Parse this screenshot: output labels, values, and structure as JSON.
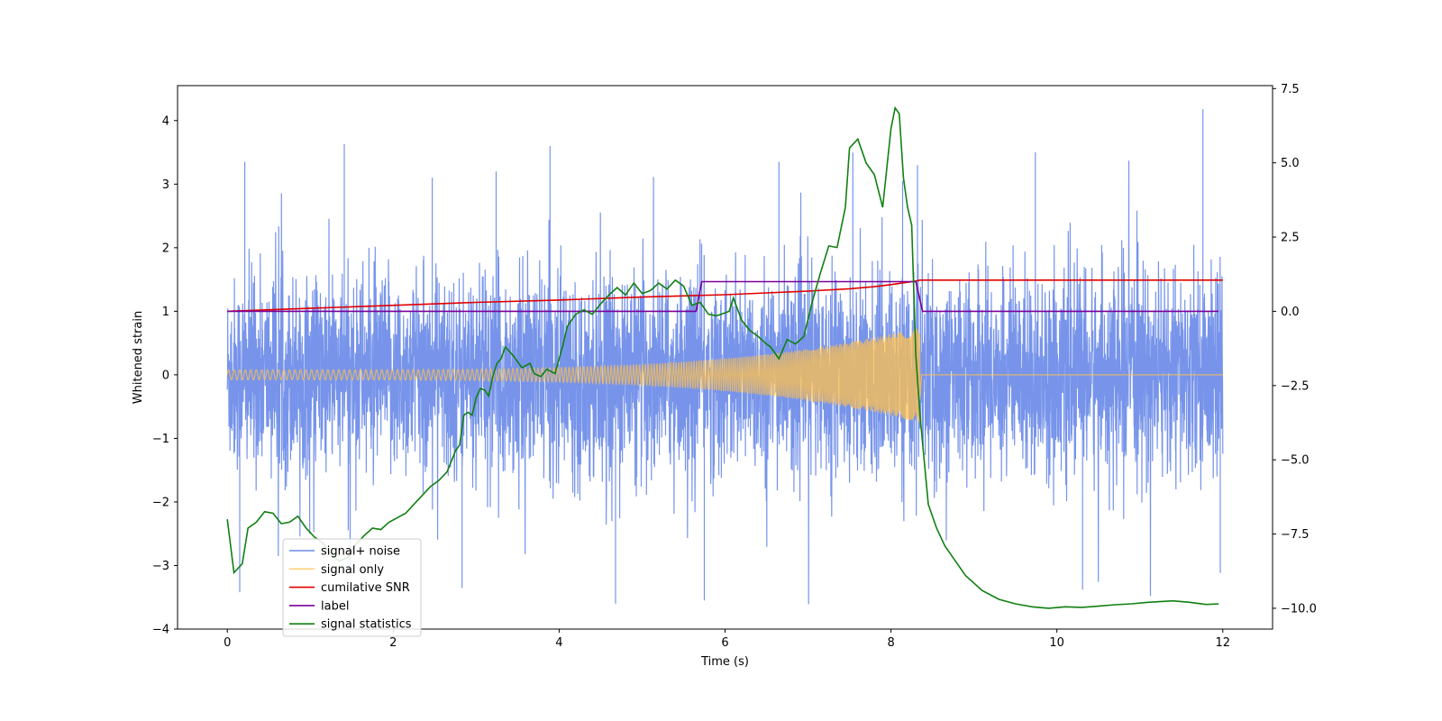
{
  "chart_data": {
    "type": "line",
    "xlabel": "Time (s)",
    "ylabel": "Whitened strain",
    "xlim": [
      -0.6,
      12.6
    ],
    "ylim": [
      -4.0,
      4.55
    ],
    "y2lim": [
      -10.7,
      7.6
    ],
    "xticks": [
      0,
      2,
      4,
      6,
      8,
      10,
      12
    ],
    "yticks": [
      -4,
      -3,
      -2,
      -1,
      0,
      1,
      2,
      3,
      4
    ],
    "y2ticks": [
      -10.0,
      -7.5,
      -5.0,
      -2.5,
      0.0,
      2.5,
      5.0,
      7.5
    ],
    "y2tick_labels": [
      "−10.0",
      "−7.5",
      "−5.0",
      "−2.5",
      "0.0",
      "2.5",
      "5.0",
      "7.5"
    ],
    "legend_position": "lower-left",
    "grid": false,
    "series": [
      {
        "name": "signal+ noise",
        "axis": "left",
        "color": "#6b8be8",
        "description_envelope": {
          "x_range": [
            0,
            12
          ],
          "typical_band": [
            -1.3,
            1.3
          ],
          "peak_max": 4.18,
          "peak_min": -3.6
        },
        "peaks": [
          {
            "x": 0.21,
            "y": 3.35
          },
          {
            "x": 0.15,
            "y": -3.42
          },
          {
            "x": 1.41,
            "y": 3.63
          },
          {
            "x": 2.47,
            "y": 3.1
          },
          {
            "x": 3.24,
            "y": 3.2
          },
          {
            "x": 3.89,
            "y": 3.6
          },
          {
            "x": 4.68,
            "y": -3.6
          },
          {
            "x": 5.75,
            "y": -3.55
          },
          {
            "x": 2.83,
            "y": -3.35
          },
          {
            "x": 6.65,
            "y": 3.35
          },
          {
            "x": 7.54,
            "y": 3.5
          },
          {
            "x": 8.14,
            "y": 3.05
          },
          {
            "x": 9.74,
            "y": 3.5
          },
          {
            "x": 10.31,
            "y": -3.38
          },
          {
            "x": 11.76,
            "y": 4.18
          },
          {
            "x": 11.97,
            "y": -3.12
          },
          {
            "x": 8.32,
            "y": 3.3
          }
        ]
      },
      {
        "name": "signal only",
        "axis": "left",
        "color": "#ffc04d",
        "chirp": {
          "t_start": 0,
          "t_merge": 8.35,
          "amp_start": 0.08,
          "amp_merge": 0.75,
          "t_end": 12
        }
      },
      {
        "name": "cumilative SNR",
        "axis": "right",
        "color": "#e00000",
        "x": [
          0,
          1,
          2,
          3,
          4,
          5,
          6,
          6.5,
          7,
          7.5,
          7.8,
          8.0,
          8.15,
          8.3,
          8.35,
          12
        ],
        "y": [
          0.0,
          0.1,
          0.2,
          0.3,
          0.38,
          0.48,
          0.56,
          0.62,
          0.68,
          0.76,
          0.83,
          0.9,
          0.96,
          1.02,
          1.05,
          1.05
        ]
      },
      {
        "name": "label",
        "axis": "right",
        "color": "#7a0099",
        "x": [
          0,
          5.65,
          5.72,
          8.3,
          8.38,
          11.95
        ],
        "y": [
          0.0,
          0.0,
          1.0,
          1.0,
          0.0,
          0.0
        ]
      },
      {
        "name": "signal statistics",
        "axis": "right",
        "color": "#118011",
        "x": [
          0,
          0.08,
          0.18,
          0.25,
          0.35,
          0.45,
          0.55,
          0.65,
          0.75,
          0.85,
          0.95,
          1.05,
          1.15,
          1.25,
          1.35,
          1.45,
          1.55,
          1.65,
          1.75,
          1.85,
          1.95,
          2.05,
          2.15,
          2.25,
          2.35,
          2.45,
          2.55,
          2.65,
          2.75,
          2.8,
          2.85,
          2.9,
          2.95,
          3.0,
          3.05,
          3.1,
          3.15,
          3.2,
          3.25,
          3.3,
          3.35,
          3.45,
          3.55,
          3.65,
          3.7,
          3.78,
          3.85,
          3.95,
          4.05,
          4.1,
          4.2,
          4.3,
          4.4,
          4.5,
          4.6,
          4.7,
          4.8,
          4.9,
          5.0,
          5.1,
          5.2,
          5.3,
          5.4,
          5.5,
          5.6,
          5.7,
          5.8,
          5.9,
          6.0,
          6.05,
          6.1,
          6.2,
          6.3,
          6.4,
          6.5,
          6.55,
          6.65,
          6.75,
          6.85,
          6.95,
          7.05,
          7.15,
          7.25,
          7.35,
          7.45,
          7.5,
          7.6,
          7.7,
          7.8,
          7.9,
          8.0,
          8.05,
          8.1,
          8.15,
          8.2,
          8.25,
          8.3,
          8.35,
          8.45,
          8.55,
          8.65,
          8.75,
          8.9,
          9.1,
          9.3,
          9.5,
          9.7,
          9.9,
          10.1,
          10.3,
          10.5,
          10.7,
          10.9,
          11.1,
          11.4,
          11.6,
          11.8,
          11.95
        ],
        "y": [
          -7.0,
          -8.8,
          -8.5,
          -7.3,
          -7.1,
          -6.75,
          -6.8,
          -7.15,
          -7.1,
          -6.9,
          -7.3,
          -7.6,
          -7.8,
          -8.2,
          -8.4,
          -8.3,
          -7.85,
          -7.55,
          -7.3,
          -7.35,
          -7.1,
          -6.95,
          -6.8,
          -6.5,
          -6.2,
          -5.9,
          -5.7,
          -5.4,
          -4.7,
          -4.5,
          -3.5,
          -3.4,
          -3.5,
          -2.9,
          -2.6,
          -2.65,
          -2.85,
          -2.2,
          -1.75,
          -1.6,
          -1.2,
          -1.5,
          -1.9,
          -1.75,
          -2.1,
          -2.2,
          -1.95,
          -2.1,
          -1.1,
          -0.5,
          -0.1,
          0.05,
          -0.1,
          0.25,
          0.55,
          0.8,
          0.55,
          0.95,
          0.6,
          0.7,
          0.95,
          0.75,
          1.05,
          0.85,
          0.2,
          0.3,
          -0.1,
          -0.15,
          -0.05,
          0.0,
          0.45,
          -0.3,
          -0.65,
          -0.85,
          -1.1,
          -1.2,
          -1.6,
          -0.95,
          -1.1,
          -0.85,
          0.3,
          1.3,
          2.2,
          2.15,
          3.5,
          5.5,
          5.8,
          5.0,
          4.6,
          3.5,
          6.15,
          6.85,
          6.65,
          4.5,
          3.5,
          2.9,
          -1.5,
          -3.5,
          -6.5,
          -7.3,
          -7.9,
          -8.3,
          -8.9,
          -9.4,
          -9.7,
          -9.85,
          -9.95,
          -10.0,
          -9.95,
          -9.97,
          -9.93,
          -9.88,
          -9.85,
          -9.8,
          -9.75,
          -9.8,
          -9.87,
          -9.85
        ]
      }
    ]
  }
}
